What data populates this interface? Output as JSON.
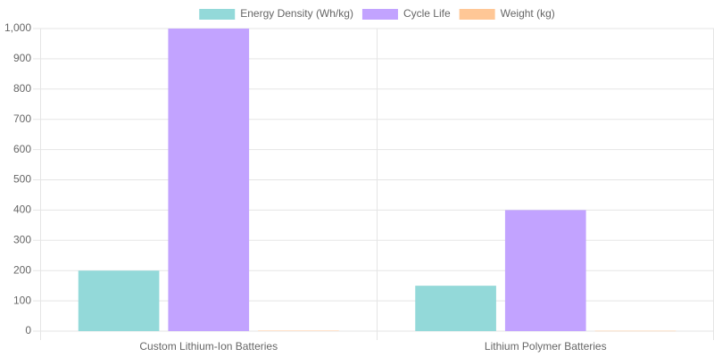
{
  "chart_data": {
    "type": "bar",
    "categories": [
      "Custom Lithium-Ion Batteries",
      "Lithium Polymer Batteries"
    ],
    "series": [
      {
        "name": "Energy Density (Wh/kg)",
        "color": "#93d9d9",
        "values": [
          200,
          150
        ]
      },
      {
        "name": "Cycle Life",
        "color": "#c2a3ff",
        "values": [
          1000,
          400
        ]
      },
      {
        "name": "Weight (kg)",
        "color": "#ffc796",
        "values": [
          1.5,
          1
        ]
      }
    ],
    "ylim": [
      0,
      1000
    ],
    "yticks": [
      0,
      100,
      200,
      300,
      400,
      500,
      600,
      700,
      800,
      900,
      {
        "value": 1000,
        "label": "1,000"
      }
    ],
    "grid": true,
    "legend": "top"
  }
}
